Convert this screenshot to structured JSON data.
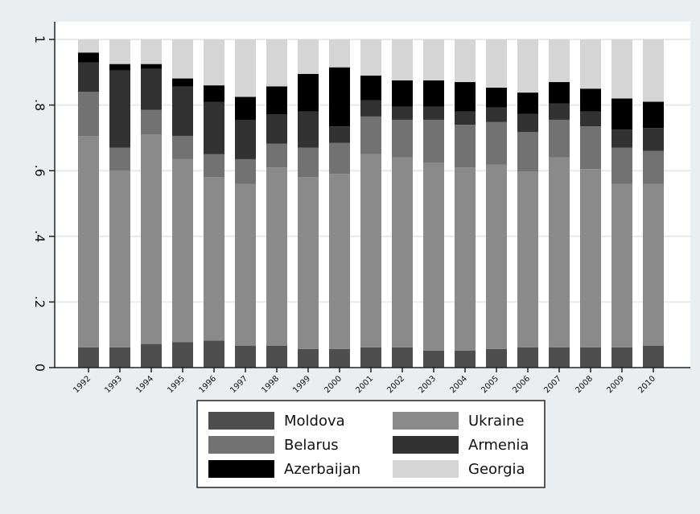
{
  "chart_data": {
    "type": "bar",
    "stacked": true,
    "categories": [
      "1992",
      "1993",
      "1994",
      "1995",
      "1996",
      "1997",
      "1998",
      "1999",
      "2000",
      "2001",
      "2002",
      "2003",
      "2004",
      "2005",
      "2006",
      "2007",
      "2008",
      "2009",
      "2010"
    ],
    "ylim": [
      0,
      1
    ],
    "yticks": [
      0,
      0.2,
      0.4,
      0.6,
      0.8,
      1
    ],
    "ytick_labels": [
      "0",
      ".2",
      ".4",
      ".6",
      ".8",
      "1"
    ],
    "grid": true,
    "legend_position": "bottom",
    "series": [
      {
        "name": "Moldova",
        "color": "#4e4e4e",
        "values": [
          0.062,
          0.062,
          0.072,
          0.078,
          0.082,
          0.067,
          0.067,
          0.057,
          0.057,
          0.062,
          0.062,
          0.052,
          0.052,
          0.057,
          0.062,
          0.062,
          0.062,
          0.062,
          0.067
        ]
      },
      {
        "name": "Ukraine",
        "color": "#8a8a8a",
        "values": [
          0.643,
          0.538,
          0.638,
          0.558,
          0.498,
          0.493,
          0.543,
          0.523,
          0.533,
          0.588,
          0.578,
          0.573,
          0.558,
          0.561,
          0.536,
          0.578,
          0.543,
          0.498,
          0.493
        ]
      },
      {
        "name": "Belarus",
        "color": "#727272",
        "values": [
          0.135,
          0.07,
          0.075,
          0.07,
          0.07,
          0.075,
          0.072,
          0.09,
          0.095,
          0.115,
          0.115,
          0.13,
          0.13,
          0.13,
          0.12,
          0.115,
          0.13,
          0.11,
          0.1
        ]
      },
      {
        "name": "Armenia",
        "color": "#323232",
        "values": [
          0.09,
          0.235,
          0.125,
          0.15,
          0.16,
          0.12,
          0.09,
          0.11,
          0.05,
          0.05,
          0.04,
          0.04,
          0.04,
          0.045,
          0.055,
          0.05,
          0.045,
          0.055,
          0.07
        ]
      },
      {
        "name": "Azerbaijan",
        "color": "#000000",
        "values": [
          0.03,
          0.02,
          0.015,
          0.025,
          0.05,
          0.07,
          0.085,
          0.115,
          0.18,
          0.075,
          0.08,
          0.08,
          0.09,
          0.06,
          0.065,
          0.065,
          0.07,
          0.095,
          0.08
        ]
      },
      {
        "name": "Georgia",
        "color": "#d5d5d5",
        "values": [
          0.04,
          0.075,
          0.075,
          0.119,
          0.14,
          0.175,
          0.143,
          0.105,
          0.085,
          0.11,
          0.125,
          0.125,
          0.13,
          0.147,
          0.162,
          0.13,
          0.15,
          0.18,
          0.19
        ]
      }
    ],
    "legend": {
      "columns": 2,
      "items": [
        {
          "series": "Moldova"
        },
        {
          "series": "Ukraine"
        },
        {
          "series": "Belarus"
        },
        {
          "series": "Armenia"
        },
        {
          "series": "Azerbaijan"
        },
        {
          "series": "Georgia"
        }
      ]
    }
  },
  "colors": {
    "outer_background": "#eaeef1",
    "plot_background": "#ffffff",
    "gridline": "#e6eaee",
    "axis": "#222222",
    "legend_background": "#ffffff",
    "legend_border": "#222222"
  }
}
